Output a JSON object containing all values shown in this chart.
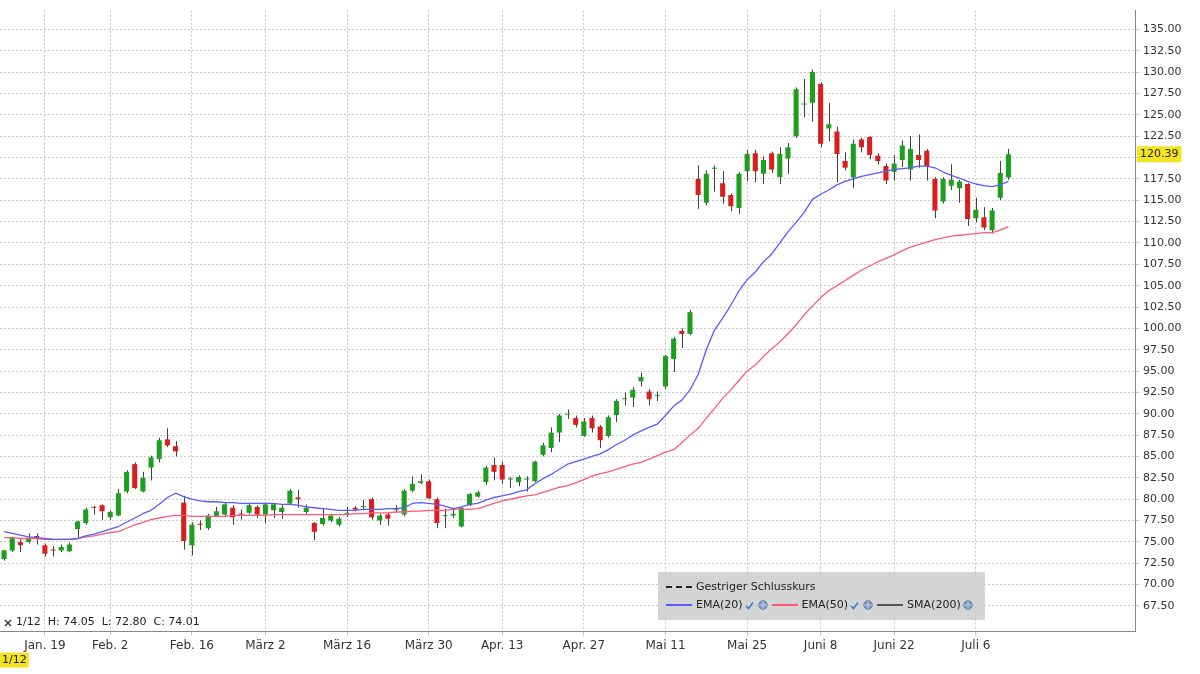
{
  "chart_data": {
    "type": "candlestick",
    "categories": [
      null,
      null,
      null,
      null,
      null,
      "Jan. 19",
      null,
      null,
      null,
      null,
      null,
      null,
      null,
      "Feb. 2",
      null,
      null,
      null,
      null,
      null,
      null,
      null,
      null,
      null,
      "Feb. 16",
      null,
      null,
      null,
      null,
      null,
      null,
      null,
      null,
      "März 2",
      null,
      null,
      null,
      null,
      null,
      null,
      null,
      null,
      null,
      "März 16",
      null,
      null,
      null,
      null,
      null,
      null,
      null,
      null,
      null,
      "März 30",
      null,
      null,
      null,
      null,
      null,
      null,
      null,
      null,
      "Apr. 13",
      null,
      null,
      null,
      null,
      null,
      null,
      null,
      null,
      null,
      "Apr. 27",
      null,
      null,
      null,
      null,
      null,
      null,
      null,
      null,
      null,
      "Mai 11",
      null,
      null,
      null,
      null,
      null,
      null,
      null,
      null,
      null,
      "Mai 25",
      null,
      null,
      null,
      null,
      null,
      null,
      null,
      null,
      "Juni 8",
      null,
      null,
      null,
      null,
      null,
      null,
      null,
      null,
      "Juni 22",
      null,
      null,
      null,
      null,
      null,
      null,
      null,
      null,
      null,
      "Juli 6",
      null,
      null,
      null,
      null,
      null,
      null,
      null,
      null,
      null,
      null,
      null,
      null,
      null,
      null,
      null,
      null,
      null,
      null,
      null
    ],
    "ohlc": [
      [
        73.0,
        74.05,
        72.8,
        74.01
      ],
      [
        74.0,
        75.6,
        73.8,
        75.5
      ],
      [
        75.0,
        75.3,
        73.8,
        74.6
      ],
      [
        75.0,
        76.0,
        74.8,
        75.4
      ],
      [
        75.7,
        76.0,
        74.7,
        75.4
      ],
      [
        74.6,
        74.8,
        73.3,
        73.6
      ],
      [
        74.1,
        74.5,
        73.3,
        74.0
      ],
      [
        74.0,
        74.7,
        73.8,
        74.4
      ],
      [
        73.9,
        74.9,
        73.8,
        74.7
      ],
      [
        76.5,
        77.5,
        75.5,
        77.4
      ],
      [
        77.2,
        79.0,
        77.0,
        78.8
      ],
      [
        79.1,
        79.2,
        78.2,
        79.0
      ],
      [
        79.3,
        79.4,
        77.6,
        78.6
      ],
      [
        77.9,
        78.7,
        77.6,
        78.5
      ],
      [
        78.1,
        81.2,
        78.0,
        80.7
      ],
      [
        80.9,
        83.4,
        80.7,
        83.2
      ],
      [
        84.1,
        84.3,
        81.2,
        81.3
      ],
      [
        80.9,
        83.2,
        80.8,
        82.5
      ],
      [
        83.7,
        85.1,
        82.2,
        84.9
      ],
      [
        84.7,
        87.2,
        84.3,
        86.9
      ],
      [
        87.0,
        88.3,
        86.1,
        86.3
      ],
      [
        86.2,
        86.8,
        85.0,
        85.6
      ],
      [
        79.6,
        80.4,
        74.1,
        75.1
      ],
      [
        74.6,
        77.3,
        73.4,
        77.0
      ],
      [
        77.1,
        77.5,
        76.4,
        77.0
      ],
      [
        76.6,
        78.3,
        76.4,
        78.1
      ],
      [
        78.0,
        79.1,
        77.9,
        78.6
      ],
      [
        78.2,
        79.6,
        78.0,
        79.4
      ],
      [
        79.0,
        79.3,
        77.0,
        77.9
      ],
      [
        78.3,
        78.8,
        77.6,
        78.2
      ],
      [
        78.4,
        79.5,
        78.2,
        79.3
      ],
      [
        79.1,
        79.3,
        77.8,
        78.2
      ],
      [
        78.2,
        79.6,
        77.2,
        79.4
      ],
      [
        78.7,
        79.5,
        77.8,
        79.4
      ],
      [
        78.5,
        79.3,
        77.7,
        79.0
      ],
      [
        79.5,
        81.2,
        79.3,
        81.0
      ],
      [
        80.2,
        81.1,
        79.0,
        80.0
      ],
      [
        78.5,
        79.4,
        78.3,
        79.0
      ],
      [
        77.2,
        77.3,
        75.2,
        76.2
      ],
      [
        77.1,
        79.0,
        76.9,
        77.8
      ],
      [
        77.5,
        78.3,
        77.3,
        78.1
      ],
      [
        77.0,
        77.9,
        76.8,
        77.7
      ],
      [
        78.3,
        79.1,
        77.9,
        78.4
      ],
      [
        79.0,
        79.2,
        78.6,
        78.8
      ],
      [
        79.1,
        79.9,
        78.7,
        79.2
      ],
      [
        80.0,
        80.2,
        77.6,
        77.9
      ],
      [
        77.5,
        78.3,
        77.0,
        78.1
      ],
      [
        78.2,
        78.4,
        76.9,
        77.7
      ],
      [
        78.7,
        79.3,
        78.5,
        78.8
      ],
      [
        78.2,
        81.2,
        78.0,
        81.0
      ],
      [
        81.0,
        82.65,
        80.8,
        81.8
      ],
      [
        81.9,
        82.9,
        81.8,
        82.1
      ],
      [
        82.1,
        82.3,
        80.0,
        80.1
      ],
      [
        80.0,
        80.2,
        76.6,
        77.2
      ],
      [
        78.0,
        78.9,
        76.6,
        78.0
      ],
      [
        78.1,
        79.0,
        77.8,
        78.3
      ],
      [
        76.8,
        79.1,
        76.7,
        79.0
      ],
      [
        79.3,
        80.7,
        79.2,
        80.6
      ],
      [
        80.3,
        81.0,
        80.2,
        80.8
      ],
      [
        82.0,
        83.9,
        81.7,
        83.7
      ],
      [
        84.0,
        84.9,
        82.2,
        83.2
      ],
      [
        84.0,
        84.4,
        81.8,
        82.3
      ],
      [
        82.3,
        82.6,
        81.3,
        82.4
      ],
      [
        82.0,
        82.8,
        81.5,
        82.6
      ],
      [
        82.3,
        82.7,
        80.9,
        82.4
      ],
      [
        82.1,
        84.5,
        82.0,
        84.4
      ],
      [
        85.2,
        86.6,
        85.0,
        86.3
      ],
      [
        86.0,
        88.4,
        85.5,
        87.8
      ],
      [
        87.8,
        90.0,
        86.7,
        89.8
      ],
      [
        89.9,
        90.5,
        89.4,
        89.9
      ],
      [
        89.5,
        89.8,
        88.4,
        88.7
      ],
      [
        87.4,
        89.5,
        87.3,
        89.1
      ],
      [
        89.5,
        89.8,
        87.8,
        88.3
      ],
      [
        88.5,
        88.7,
        86.0,
        86.9
      ],
      [
        87.4,
        89.8,
        87.2,
        89.6
      ],
      [
        89.85,
        91.7,
        89.0,
        91.5
      ],
      [
        91.7,
        92.5,
        91.0,
        91.8
      ],
      [
        91.9,
        93.1,
        90.8,
        92.8
      ],
      [
        93.8,
        94.8,
        93.2,
        94.3
      ],
      [
        92.6,
        92.9,
        91.0,
        91.7
      ],
      [
        92.1,
        92.6,
        91.5,
        92.2
      ],
      [
        93.2,
        96.9,
        92.9,
        96.75
      ],
      [
        96.4,
        99.0,
        94.9,
        98.8
      ],
      [
        99.7,
        100.0,
        97.7,
        99.35
      ],
      [
        99.35,
        102.2,
        99.2,
        101.9
      ],
      [
        117.5,
        119.1,
        114.0,
        115.6
      ],
      [
        114.7,
        118.5,
        114.4,
        118.1
      ],
      [
        118.7,
        119.1,
        116.0,
        118.8
      ],
      [
        117.0,
        118.4,
        114.6,
        115.4
      ],
      [
        115.6,
        115.8,
        113.7,
        114.3
      ],
      [
        114.1,
        118.3,
        113.4,
        118.1
      ],
      [
        118.4,
        120.9,
        117.2,
        120.4
      ],
      [
        120.5,
        120.9,
        117.1,
        118.4
      ],
      [
        118.1,
        120.1,
        116.9,
        119.7
      ],
      [
        120.5,
        120.7,
        118.2,
        118.6
      ],
      [
        117.7,
        121.2,
        116.9,
        120.4
      ],
      [
        119.9,
        121.7,
        118.1,
        121.2
      ],
      [
        122.5,
        128.2,
        122.3,
        128.0
      ],
      [
        126.2,
        129.2,
        124.7,
        126.3
      ],
      [
        126.4,
        130.3,
        124.2,
        130.0
      ],
      [
        128.6,
        128.8,
        121.2,
        121.6
      ],
      [
        123.4,
        126.4,
        121.9,
        123.9
      ],
      [
        123.05,
        123.6,
        117.1,
        120.4
      ],
      [
        119.6,
        120.6,
        118.5,
        118.8
      ],
      [
        117.65,
        122.1,
        116.4,
        121.6
      ],
      [
        122.1,
        122.3,
        120.6,
        121.2
      ],
      [
        122.4,
        122.5,
        119.8,
        120.3
      ],
      [
        120.2,
        120.5,
        119.2,
        119.6
      ],
      [
        119.0,
        119.3,
        116.9,
        117.3
      ],
      [
        118.3,
        120.3,
        117.3,
        119.3
      ],
      [
        119.7,
        122.0,
        118.9,
        121.4
      ],
      [
        118.6,
        122.5,
        117.3,
        121.0
      ],
      [
        120.3,
        122.7,
        118.8,
        119.7
      ],
      [
        120.8,
        121.0,
        117.3,
        119.0
      ],
      [
        117.5,
        117.7,
        112.9,
        113.8
      ],
      [
        114.85,
        117.7,
        114.6,
        117.5
      ],
      [
        116.7,
        119.2,
        116.2,
        117.4
      ],
      [
        116.4,
        117.4,
        114.7,
        117.2
      ],
      [
        116.9,
        117.0,
        112.0,
        112.8
      ],
      [
        112.9,
        115.3,
        112.4,
        113.9
      ],
      [
        113.0,
        114.2,
        111.5,
        111.8
      ],
      [
        111.5,
        114.1,
        111.1,
        113.8
      ],
      [
        115.3,
        119.6,
        115.0,
        118.2
      ],
      [
        117.65,
        121.0,
        117.4,
        120.39
      ],
      null,
      null,
      null,
      null,
      null,
      null,
      null,
      null,
      null,
      null,
      null,
      null,
      null,
      null,
      null
    ],
    "colors": [
      "#1e9e1e",
      "#1e9e1e",
      "#d81e1e",
      "#1e9e1e",
      "#d81e1e",
      "#d81e1e",
      "#d81e1e",
      "#1e9e1e",
      "#1e9e1e",
      "#1e9e1e",
      "#1e9e1e",
      "#d81e1e",
      "#d81e1e",
      "#1e9e1e",
      "#1e9e1e",
      "#1e9e1e",
      "#d81e1e",
      "#1e9e1e",
      "#1e9e1e",
      "#1e9e1e",
      "#d81e1e",
      "#d81e1e",
      "#d81e1e",
      "#1e9e1e",
      "#d81e1e",
      "#1e9e1e",
      "#1e9e1e",
      "#1e9e1e",
      "#d81e1e",
      "#d81e1e",
      "#1e9e1e",
      "#d81e1e",
      "#1e9e1e",
      "#1e9e1e",
      "#1e9e1e",
      "#1e9e1e",
      "#d81e1e",
      "#1e9e1e",
      "#d81e1e",
      "#1e9e1e",
      "#1e9e1e",
      "#1e9e1e",
      "#1e9e1e",
      "#d81e1e",
      "#1e9e1e",
      "#d81e1e",
      "#1e9e1e",
      "#d81e1e",
      "#1e9e1e",
      "#1e9e1e",
      "#1e9e1e",
      "#1e9e1e",
      "#d81e1e",
      "#d81e1e",
      "#1e9e1e",
      "#1e9e1e",
      "#1e9e1e",
      "#1e9e1e",
      "#1e9e1e",
      "#1e9e1e",
      "#d81e1e",
      "#d81e1e",
      "#1e9e1e",
      "#1e9e1e",
      "#1e9e1e",
      "#1e9e1e",
      "#1e9e1e",
      "#1e9e1e",
      "#1e9e1e",
      "#1e9e1e",
      "#d81e1e",
      "#1e9e1e",
      "#d81e1e",
      "#d81e1e",
      "#1e9e1e",
      "#1e9e1e",
      "#1e9e1e",
      "#1e9e1e",
      "#1e9e1e",
      "#d81e1e",
      "#1e9e1e",
      "#1e9e1e",
      "#1e9e1e",
      "#d81e1e",
      "#1e9e1e",
      "#d81e1e",
      "#1e9e1e",
      "#1e9e1e",
      "#d81e1e",
      "#d81e1e",
      "#1e9e1e",
      "#1e9e1e",
      "#d81e1e",
      "#1e9e1e",
      "#d81e1e",
      "#1e9e1e",
      "#1e9e1e",
      "#1e9e1e",
      "#1e9e1e",
      "#1e9e1e",
      "#d81e1e",
      "#1e9e1e",
      "#d81e1e",
      "#d81e1e",
      "#1e9e1e",
      "#d81e1e",
      "#d81e1e",
      "#d81e1e",
      "#d81e1e",
      "#1e9e1e",
      "#1e9e1e",
      "#1e9e1e",
      "#d81e1e",
      "#d81e1e",
      "#d81e1e",
      "#1e9e1e",
      "#1e9e1e",
      "#1e9e1e",
      "#d81e1e",
      "#1e9e1e",
      "#d81e1e",
      "#1e9e1e",
      "#1e9e1e",
      "#1e9e1e",
      null,
      null,
      null,
      null,
      null,
      null,
      null,
      null,
      null,
      null,
      null,
      null,
      null,
      null,
      null
    ],
    "series": [
      {
        "name": "Gestriger Schlusskurs",
        "type": "line",
        "color": "#222222",
        "line_style": "dashed",
        "values": [
          null,
          null,
          null,
          null,
          null,
          null,
          null,
          null,
          null,
          null,
          null,
          null,
          null,
          null,
          null,
          null,
          null,
          null,
          null,
          null,
          null,
          null,
          null,
          null,
          null,
          null,
          null,
          null,
          null,
          null,
          null,
          null,
          null,
          null,
          null,
          null,
          null,
          null,
          null,
          null,
          null,
          null,
          null,
          null,
          null,
          null,
          null,
          null,
          null,
          null,
          null,
          null,
          null,
          null,
          null,
          null,
          null,
          null,
          null,
          null,
          null,
          null,
          null,
          null,
          null,
          null,
          null,
          null,
          null,
          null,
          null,
          null,
          null,
          null,
          null,
          null,
          null,
          null,
          null,
          null,
          null,
          null,
          null,
          null,
          null,
          null,
          null,
          null,
          null,
          null,
          null,
          null,
          null,
          null,
          null,
          null,
          null,
          null,
          null,
          null,
          null,
          null,
          null,
          null,
          null,
          null,
          null,
          null,
          null,
          null,
          null,
          null,
          null,
          null,
          null,
          null,
          null,
          null,
          null,
          null,
          null,
          null,
          null,
          null,
          null,
          null,
          null,
          null,
          null,
          null,
          null,
          null,
          null,
          null,
          null,
          null,
          null,
          null,
          null
        ]
      },
      {
        "name": "EMA(20)",
        "type": "line",
        "color": "#5a5aff",
        "values": [
          76.2,
          76.0,
          75.8,
          75.6,
          75.5,
          75.4,
          75.3,
          75.3,
          75.3,
          75.4,
          75.7,
          75.9,
          76.2,
          76.5,
          76.8,
          77.3,
          77.8,
          78.3,
          78.7,
          79.4,
          80.2,
          80.7,
          80.3,
          80.0,
          79.8,
          79.7,
          79.7,
          79.6,
          79.6,
          79.5,
          79.5,
          79.5,
          79.5,
          79.5,
          79.4,
          79.4,
          79.3,
          79.1,
          79.0,
          78.9,
          78.8,
          78.7,
          78.7,
          78.7,
          78.8,
          78.8,
          78.8,
          78.9,
          78.9,
          79.0,
          79.5,
          79.6,
          79.5,
          79.4,
          79.2,
          78.9,
          79.1,
          79.4,
          79.5,
          79.9,
          80.2,
          80.4,
          80.6,
          80.9,
          81.1,
          81.8,
          82.4,
          82.9,
          83.5,
          84.1,
          84.4,
          84.7,
          85.0,
          85.3,
          85.8,
          86.4,
          86.9,
          87.5,
          88.0,
          88.4,
          88.8,
          89.8,
          90.9,
          91.6,
          92.8,
          94.6,
          97.5,
          99.8,
          101.2,
          102.7,
          104.4,
          105.7,
          106.6,
          107.8,
          108.7,
          110.0,
          111.3,
          112.4,
          113.6,
          115.1,
          115.7,
          116.2,
          116.8,
          117.2,
          117.5,
          117.8,
          118.0,
          118.2,
          118.4,
          118.6,
          118.7,
          118.8,
          119.0,
          119.0,
          118.8,
          118.3,
          117.9,
          117.6,
          117.2,
          116.9,
          116.7,
          116.6,
          116.8,
          117.2,
          null,
          null,
          null,
          null,
          null,
          null,
          null,
          null,
          null,
          null,
          null,
          null,
          null,
          null,
          null
        ]
      },
      {
        "name": "EMA(50)",
        "type": "line",
        "color": "#ff5a7a",
        "values": [
          75.5,
          75.5,
          75.4,
          75.4,
          75.4,
          75.3,
          75.3,
          75.3,
          75.3,
          75.4,
          75.6,
          75.7,
          75.9,
          76.1,
          76.2,
          76.6,
          77.0,
          77.3,
          77.6,
          77.8,
          78.0,
          78.1,
          78.1,
          78.0,
          78.0,
          78.0,
          78.0,
          78.0,
          78.1,
          78.1,
          78.1,
          78.1,
          78.1,
          78.2,
          78.2,
          78.2,
          78.2,
          78.2,
          78.2,
          78.2,
          78.2,
          78.2,
          78.2,
          78.3,
          78.3,
          78.4,
          78.4,
          78.4,
          78.5,
          78.5,
          78.6,
          78.6,
          78.7,
          78.7,
          78.7,
          78.8,
          78.8,
          78.8,
          78.9,
          79.2,
          79.5,
          79.8,
          80.0,
          80.2,
          80.4,
          80.5,
          80.8,
          81.1,
          81.4,
          81.6,
          81.9,
          82.3,
          82.7,
          83.0,
          83.2,
          83.5,
          83.8,
          84.1,
          84.3,
          84.7,
          85.1,
          85.5,
          85.8,
          86.6,
          87.5,
          88.3,
          89.5,
          90.6,
          91.8,
          92.8,
          93.9,
          95.0,
          95.7,
          96.7,
          97.6,
          98.4,
          99.4,
          100.4,
          101.6,
          102.6,
          103.6,
          104.4,
          105.0,
          105.6,
          106.2,
          106.8,
          107.3,
          107.8,
          108.2,
          108.6,
          109.1,
          109.5,
          109.8,
          110.1,
          110.4,
          110.6,
          110.8,
          110.9,
          111.0,
          111.1,
          111.2,
          111.2,
          111.5,
          111.9,
          null,
          null,
          null,
          null,
          null,
          null,
          null,
          null,
          null,
          null,
          null,
          null,
          null,
          null,
          null
        ]
      },
      {
        "name": "SMA(200)",
        "type": "line",
        "color": "#555555",
        "values": [
          null,
          null,
          null,
          null,
          null,
          null,
          null,
          null,
          null,
          null,
          null,
          null,
          null,
          null,
          null,
          null,
          null,
          null,
          null,
          null,
          null,
          null,
          null,
          null,
          null,
          null,
          null,
          null,
          null,
          null,
          null,
          null,
          null,
          null,
          null,
          null,
          null,
          null,
          null,
          null,
          null,
          null,
          null,
          null,
          null,
          null,
          null,
          null,
          null,
          null,
          null,
          null,
          null,
          null,
          null,
          null,
          null,
          null,
          null,
          null,
          null,
          null,
          null,
          null,
          null,
          null,
          null,
          null,
          null,
          null,
          null,
          null,
          null,
          null,
          null,
          null,
          null,
          null,
          null,
          null,
          null,
          null,
          null,
          null,
          null,
          null,
          null,
          null,
          null,
          null,
          null,
          null,
          null,
          null,
          null,
          null,
          null,
          null,
          null,
          null,
          null,
          null,
          null,
          null,
          null,
          null,
          null,
          null,
          null,
          null,
          null,
          null,
          null,
          null,
          null,
          null,
          null,
          null,
          null,
          null,
          null,
          null,
          null,
          null,
          null,
          null,
          null,
          null,
          null,
          null,
          null,
          null,
          null,
          null,
          null,
          null,
          null,
          null,
          null
        ]
      }
    ],
    "ylim": [
      64.5,
      137.2
    ],
    "yticks": [
      {
        "value": 67.5,
        "label": "67.50"
      },
      {
        "value": 70,
        "label": "70.00"
      },
      {
        "value": 72.5,
        "label": "72.50"
      },
      {
        "value": 75,
        "label": "75.00"
      },
      {
        "value": 77.5,
        "label": "77.50"
      },
      {
        "value": 80,
        "label": "80.00"
      },
      {
        "value": 82.5,
        "label": "82.50"
      },
      {
        "value": 85,
        "label": "85.00"
      },
      {
        "value": 87.5,
        "label": "87.50"
      },
      {
        "value": 90,
        "label": "90.00"
      },
      {
        "value": 92.5,
        "label": "92.50"
      },
      {
        "value": 95,
        "label": "95.00"
      },
      {
        "value": 97.5,
        "label": "97.50"
      },
      {
        "value": 100,
        "label": "100.00"
      },
      {
        "value": 102.5,
        "label": "102.50"
      },
      {
        "value": 105,
        "label": "105.00"
      },
      {
        "value": 107.5,
        "label": "107.50"
      },
      {
        "value": 110,
        "label": "110.00"
      },
      {
        "value": 112.5,
        "label": "112.50"
      },
      {
        "value": 115,
        "label": "115.00"
      },
      {
        "value": 117.5,
        "label": "117.50"
      },
      {
        "value": 120,
        "label": null
      },
      {
        "value": 122.5,
        "label": "122.50"
      },
      {
        "value": 125,
        "label": "125.00"
      },
      {
        "value": 127.5,
        "label": "127.50"
      },
      {
        "value": 130,
        "label": "130.00"
      },
      {
        "value": 132.5,
        "label": "132.50"
      },
      {
        "value": 135,
        "label": "135.00"
      }
    ],
    "annotations": [
      "1/12  H: 74.05  L: 72.80  C: 74.01",
      "1/12",
      "120.39"
    ],
    "grid": true,
    "legend": "bottom"
  }
}
